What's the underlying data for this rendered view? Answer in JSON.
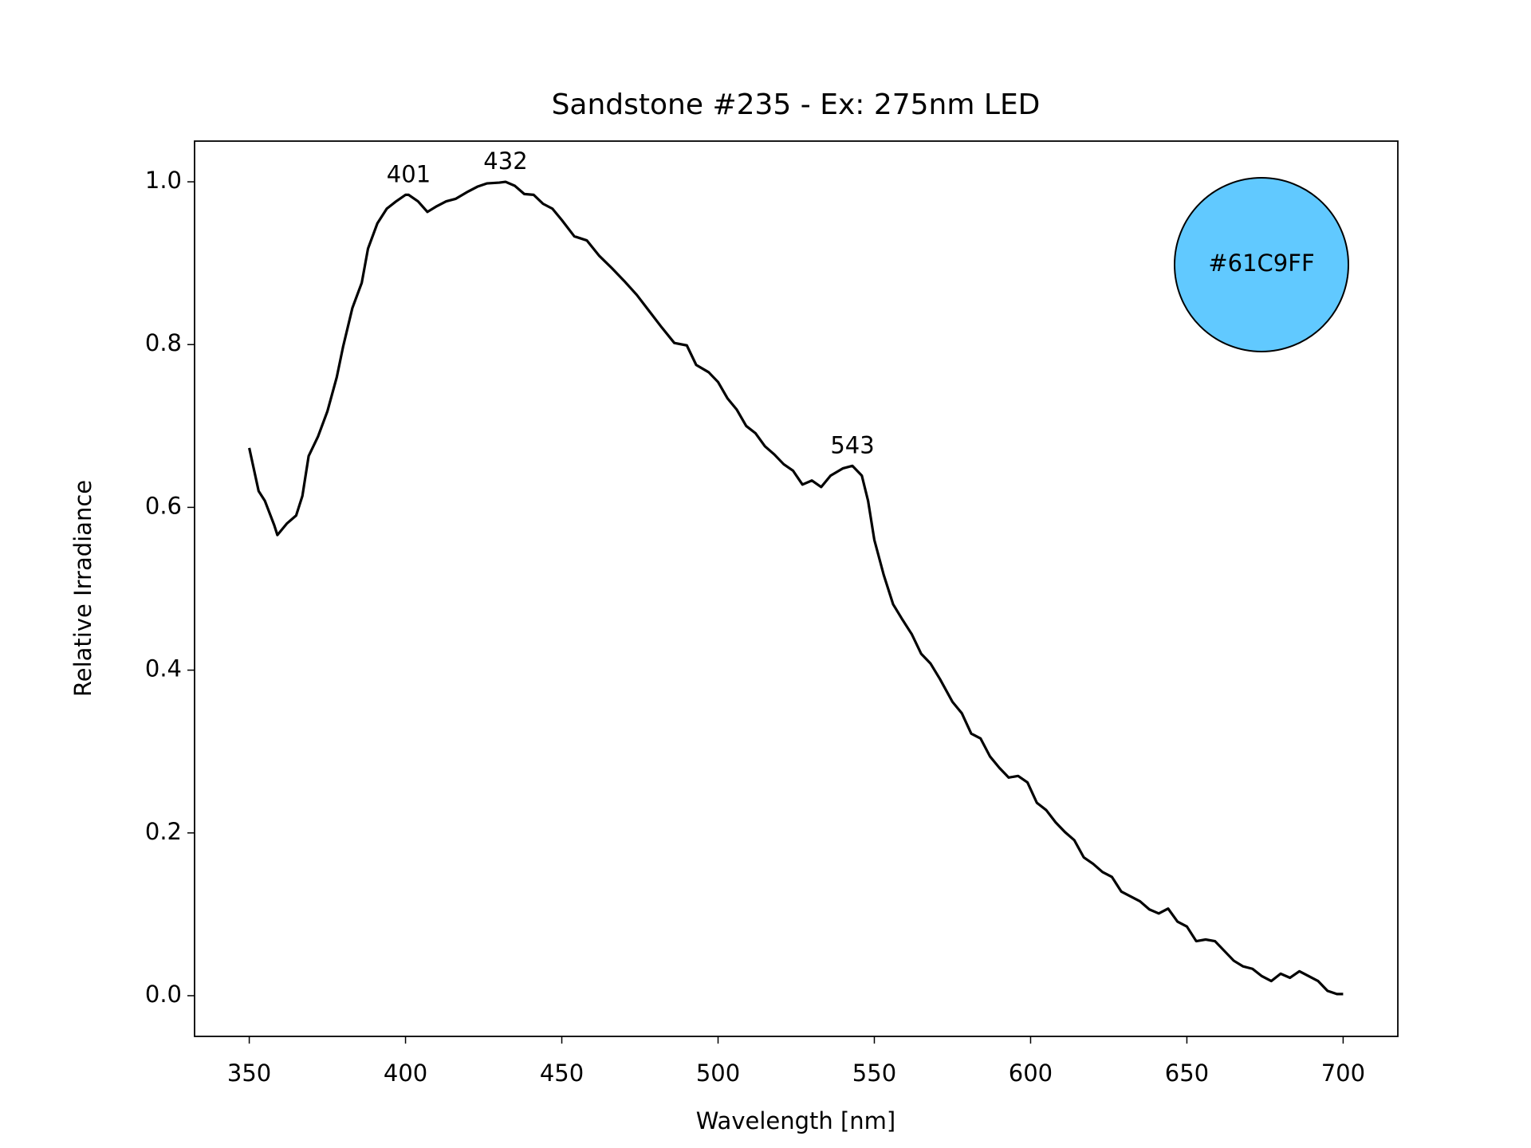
{
  "chart_data": {
    "type": "line",
    "title": "Sandstone #235 - Ex: 275nm LED",
    "xlabel": "Wavelength [nm]",
    "ylabel": "Relative Irradiance",
    "x": [
      350,
      353,
      355,
      358,
      359,
      362,
      365,
      367,
      369,
      372,
      375,
      378,
      380,
      383,
      386,
      388,
      391,
      394,
      397,
      400,
      401,
      404,
      407,
      410,
      413,
      416,
      420,
      423,
      426,
      430,
      432,
      435,
      438,
      441,
      444,
      447,
      450,
      454,
      458,
      462,
      466,
      470,
      474,
      478,
      482,
      486,
      490,
      493,
      497,
      500,
      503,
      506,
      509,
      512,
      515,
      518,
      521,
      524,
      527,
      530,
      533,
      536,
      540,
      543,
      546,
      548,
      550,
      553,
      556,
      559,
      562,
      565,
      568,
      571,
      575,
      578,
      581,
      584,
      587,
      590,
      593,
      596,
      599,
      602,
      605,
      608,
      611,
      614,
      617,
      620,
      623,
      626,
      629,
      632,
      635,
      638,
      641,
      644,
      647,
      650,
      653,
      656,
      659,
      662,
      665,
      668,
      671,
      674,
      677,
      680,
      683,
      686,
      689,
      692,
      695,
      698,
      700
    ],
    "values": [
      0.673,
      0.62,
      0.608,
      0.578,
      0.566,
      0.58,
      0.59,
      0.614,
      0.663,
      0.687,
      0.718,
      0.76,
      0.797,
      0.845,
      0.876,
      0.918,
      0.949,
      0.967,
      0.976,
      0.984,
      0.984,
      0.976,
      0.963,
      0.97,
      0.976,
      0.979,
      0.988,
      0.994,
      0.998,
      0.999,
      1.0,
      0.995,
      0.985,
      0.984,
      0.973,
      0.967,
      0.953,
      0.933,
      0.928,
      0.909,
      0.894,
      0.878,
      0.861,
      0.841,
      0.821,
      0.802,
      0.799,
      0.775,
      0.766,
      0.754,
      0.734,
      0.72,
      0.7,
      0.691,
      0.675,
      0.665,
      0.653,
      0.645,
      0.628,
      0.633,
      0.625,
      0.639,
      0.648,
      0.651,
      0.639,
      0.608,
      0.56,
      0.517,
      0.481,
      0.462,
      0.444,
      0.42,
      0.408,
      0.389,
      0.361,
      0.347,
      0.322,
      0.316,
      0.294,
      0.28,
      0.268,
      0.27,
      0.262,
      0.237,
      0.228,
      0.213,
      0.201,
      0.191,
      0.17,
      0.162,
      0.152,
      0.146,
      0.128,
      0.122,
      0.116,
      0.106,
      0.101,
      0.107,
      0.091,
      0.085,
      0.067,
      0.069,
      0.067,
      0.055,
      0.043,
      0.036,
      0.033,
      0.024,
      0.018,
      0.027,
      0.022,
      0.03,
      0.024,
      0.018,
      0.006,
      0.002,
      0.002
    ],
    "color": "#000000",
    "xlim": [
      332.5,
      717.5
    ],
    "ylim": [
      -0.05,
      1.05
    ],
    "xticks": [
      350,
      400,
      450,
      500,
      550,
      600,
      650,
      700
    ],
    "yticks": [
      {
        "value": 0,
        "label": "0.0"
      },
      {
        "value": 0.2,
        "label": "0.2"
      },
      {
        "value": 0.4,
        "label": "0.4"
      },
      {
        "value": 0.6,
        "label": "0.6"
      },
      {
        "value": 0.8,
        "label": "0.8"
      },
      {
        "value": 1,
        "label": "1.0"
      }
    ],
    "annotations": [
      {
        "x": 401,
        "y": 0.984,
        "label": "401"
      },
      {
        "x": 432,
        "y": 1.0,
        "label": "432"
      },
      {
        "x": 543,
        "y": 0.651,
        "label": "543"
      }
    ],
    "swatch": {
      "color": "#61C9FF",
      "label": "#61C9FF"
    }
  }
}
